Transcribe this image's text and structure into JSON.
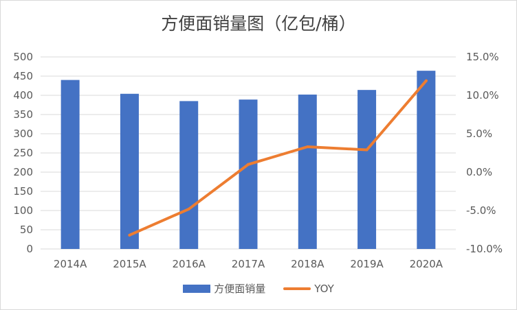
{
  "chart_data": {
    "type": "bar",
    "title": "方便面销量图（亿包/桶）",
    "categories": [
      "2014A",
      "2015A",
      "2016A",
      "2017A",
      "2018A",
      "2019A",
      "2020A"
    ],
    "series": [
      {
        "name": "方便面销量",
        "type": "bar",
        "axis": "left",
        "values": [
          440,
          404,
          385,
          389,
          402,
          414,
          464
        ]
      },
      {
        "name": "YOY",
        "type": "line",
        "axis": "right",
        "values": [
          null,
          -8.2,
          -4.8,
          1.0,
          3.3,
          2.9,
          11.9
        ]
      }
    ],
    "y_left": {
      "ylim": [
        0,
        500
      ],
      "ticks": [
        "0",
        "50",
        "100",
        "150",
        "200",
        "250",
        "300",
        "350",
        "400",
        "450",
        "500"
      ]
    },
    "y_right": {
      "ylim": [
        -10,
        15
      ],
      "ticks": [
        "-10.0%",
        "-5.0%",
        "0.0%",
        "5.0%",
        "10.0%",
        "15.0%"
      ]
    },
    "grid": true,
    "legend": "bottom",
    "colors": {
      "bar": "#4472c4",
      "line": "#ed7d31",
      "grid": "#d9d9d9",
      "text": "#595959"
    }
  }
}
